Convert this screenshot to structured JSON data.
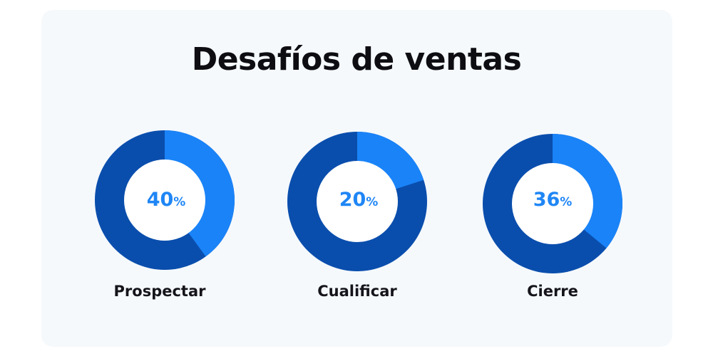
{
  "chart_data": {
    "type": "pie",
    "title": "Desafíos de ventas",
    "donuts": [
      {
        "label": "Prospectar",
        "value": 40,
        "unit": "%"
      },
      {
        "label": "Cualificar",
        "value": 20,
        "unit": "%"
      },
      {
        "label": "Cierre",
        "value": 36,
        "unit": "%"
      }
    ],
    "colors": {
      "highlight": "#1a83f8",
      "remainder": "#0a4ead",
      "center_fill": "#ffffff",
      "value_text": "#1f86f5"
    }
  }
}
